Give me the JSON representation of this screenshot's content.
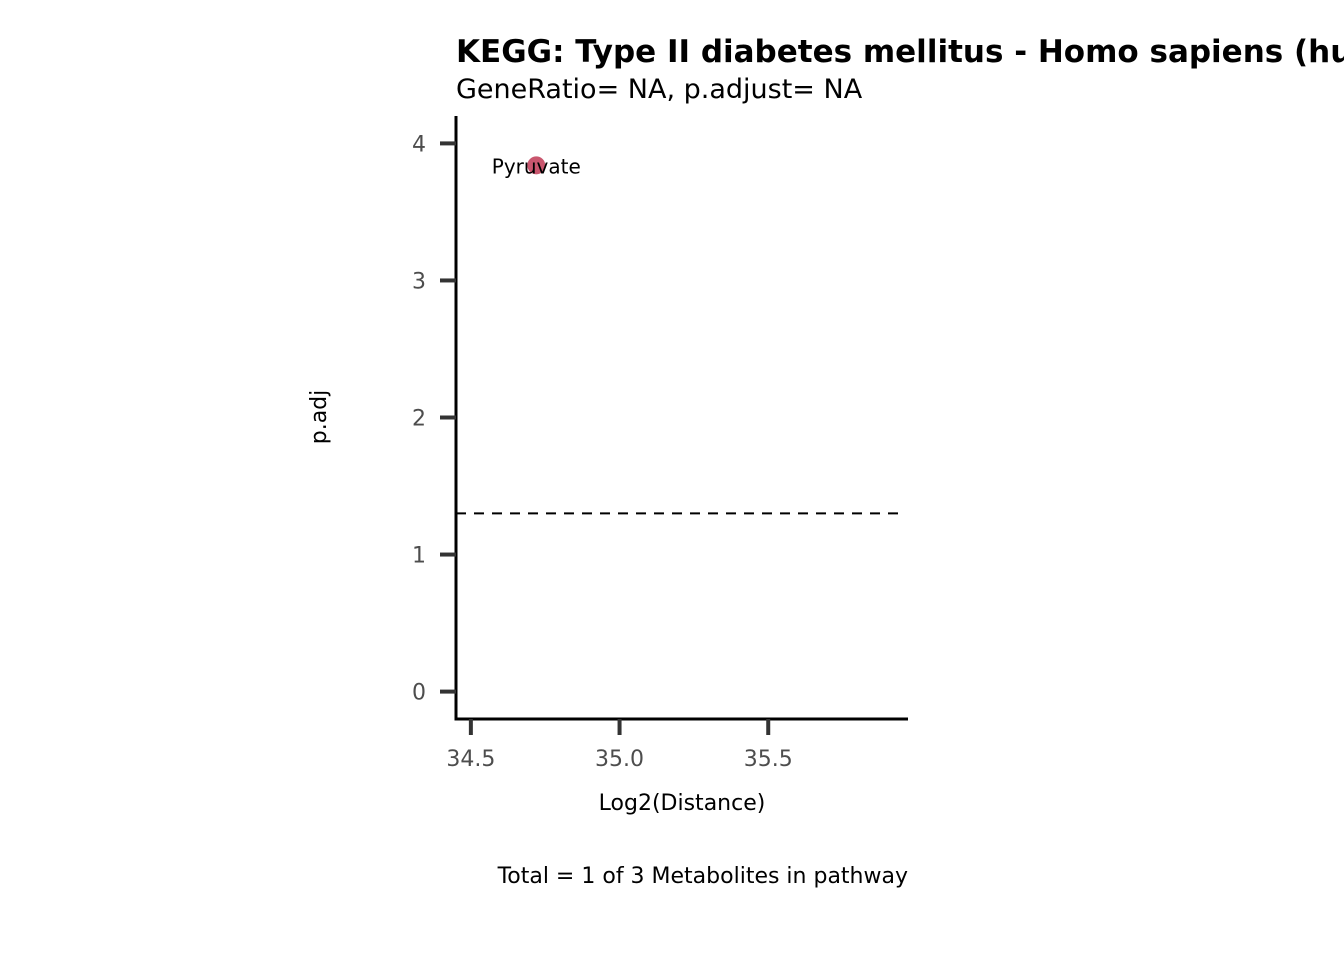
{
  "chart_data": {
    "type": "scatter",
    "title": "KEGG: Type II diabetes mellitus - Homo sapiens (human)",
    "subtitle": "GeneRatio= NA, p.adjust= NA",
    "xlabel": "Log2(Distance)",
    "ylabel": "p.adj",
    "caption": "Total = 1 of 3 Metabolites in pathway",
    "xlim": [
      34.45,
      35.97
    ],
    "ylim": [
      -0.2,
      4.2
    ],
    "x_ticks": [
      "34.5",
      "35.0",
      "35.5"
    ],
    "x_tick_values": [
      34.5,
      35.0,
      35.5
    ],
    "y_ticks": [
      "0",
      "1",
      "2",
      "3",
      "4"
    ],
    "y_tick_values": [
      0,
      1,
      2,
      3,
      4
    ],
    "threshold_line": {
      "y": 1.3,
      "style": "dashed",
      "color": "#000000"
    },
    "grid": false,
    "points": [
      {
        "label": "Pyruvate",
        "x": 34.72,
        "y": 3.84,
        "color": "#C9566E"
      }
    ]
  }
}
